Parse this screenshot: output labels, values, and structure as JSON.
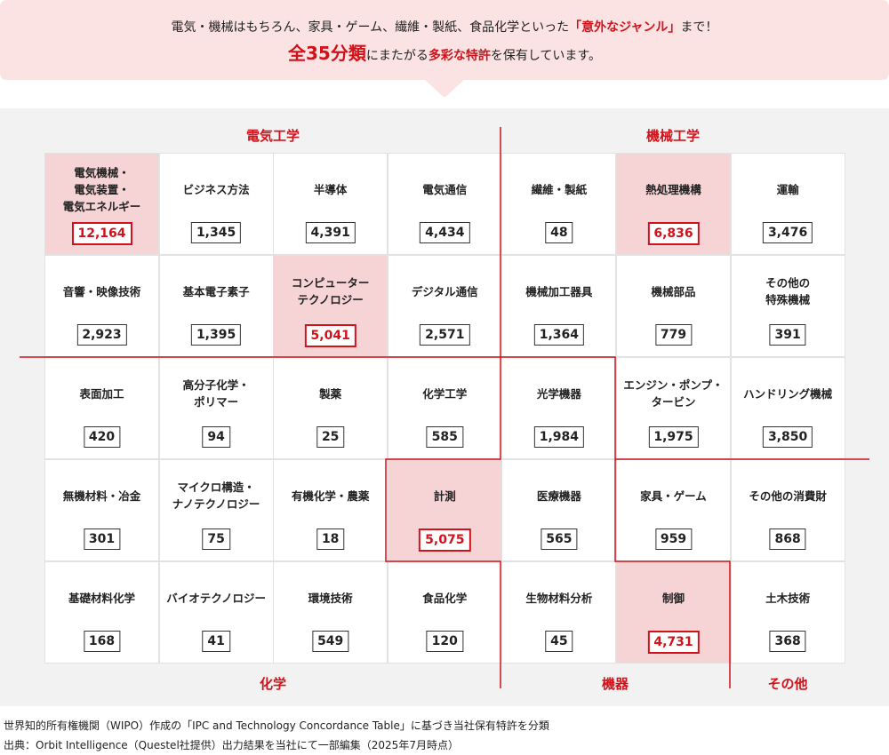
{
  "header": {
    "line1": [
      {
        "text": "電気・機械はもちろん、家具・ゲーム、繊維・製紙、食品化学といった"
      },
      {
        "text": "「意外なジャンル」",
        "accent": true
      },
      {
        "text": "まで！"
      }
    ],
    "line2": [
      {
        "text": "全35分類",
        "accent": true,
        "large": true
      },
      {
        "text": "にまたがる"
      },
      {
        "text": "多彩な特許",
        "accent": true
      },
      {
        "text": "を保有しています。"
      }
    ]
  },
  "groups": [
    {
      "label": "電気工学"
    },
    {
      "label": "機械工学"
    },
    {
      "label": "化学"
    },
    {
      "label": "機器"
    },
    {
      "label": "その他"
    }
  ],
  "rows": [
    [
      {
        "label": [
          "電気機械・",
          "電気装置・",
          "電気エネルギー"
        ],
        "count": "12,164",
        "highlight": true
      },
      {
        "label": [
          "ビジネス方法"
        ],
        "count": "1,345"
      },
      {
        "label": [
          "半導体"
        ],
        "count": "4,391"
      },
      {
        "label": [
          "電気通信"
        ],
        "count": "4,434"
      },
      {
        "label": [
          "繊維・製紙"
        ],
        "count": "48"
      },
      {
        "label": [
          "熱処理機構"
        ],
        "count": "6,836",
        "highlight": true
      },
      {
        "label": [
          "運輸"
        ],
        "count": "3,476"
      }
    ],
    [
      {
        "label": [
          "音響・映像技術"
        ],
        "count": "2,923"
      },
      {
        "label": [
          "基本電子素子"
        ],
        "count": "1,395"
      },
      {
        "label": [
          "コンピューター",
          "テクノロジー"
        ],
        "count": "5,041",
        "highlight": true
      },
      {
        "label": [
          "デジタル通信"
        ],
        "count": "2,571"
      },
      {
        "label": [
          "機械加工器具"
        ],
        "count": "1,364"
      },
      {
        "label": [
          "機械部品"
        ],
        "count": "779"
      },
      {
        "label": [
          "その他の",
          "特殊機械"
        ],
        "count": "391"
      }
    ],
    [
      {
        "label": [
          "表面加工"
        ],
        "count": "420"
      },
      {
        "label": [
          "高分子化学・",
          "ポリマー"
        ],
        "count": "94"
      },
      {
        "label": [
          "製薬"
        ],
        "count": "25"
      },
      {
        "label": [
          "化学工学"
        ],
        "count": "585"
      },
      {
        "label": [
          "光学機器"
        ],
        "count": "1,984"
      },
      {
        "label": [
          "エンジン・ポンプ・",
          "タービン"
        ],
        "count": "1,975"
      },
      {
        "label": [
          "ハンドリング機械"
        ],
        "count": "3,850"
      }
    ],
    [
      {
        "label": [
          "無機材料・冶金"
        ],
        "count": "301"
      },
      {
        "label": [
          "マイクロ構造・",
          "ナノテクノロジー"
        ],
        "count": "75"
      },
      {
        "label": [
          "有機化学・農薬"
        ],
        "count": "18"
      },
      {
        "label": [
          "計測"
        ],
        "count": "5,075",
        "highlight": true
      },
      {
        "label": [
          "医療機器"
        ],
        "count": "565"
      },
      {
        "label": [
          "家具・ゲーム"
        ],
        "count": "959"
      },
      {
        "label": [
          "その他の消費財"
        ],
        "count": "868"
      }
    ],
    [
      {
        "label": [
          "基礎材料化学"
        ],
        "count": "168"
      },
      {
        "label": [
          "バイオテクノロジー"
        ],
        "count": "41"
      },
      {
        "label": [
          "環境技術"
        ],
        "count": "549"
      },
      {
        "label": [
          "食品化学"
        ],
        "count": "120"
      },
      {
        "label": [
          "生物材料分析"
        ],
        "count": "45"
      },
      {
        "label": [
          "制御"
        ],
        "count": "4,731",
        "highlight": true
      },
      {
        "label": [
          "土木技術"
        ],
        "count": "368"
      }
    ]
  ],
  "notes": [
    "世界知的所有権機関（WIPO）作成の「IPC and Technology Concordance Table」に基づき当社保有特許を分類",
    "出典：Orbit Intelligence（Questel社提供）出力結果を当社にて一部編集（2025年7月時点）"
  ]
}
